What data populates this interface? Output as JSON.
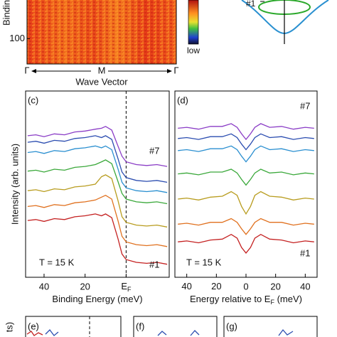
{
  "chart_data": [
    {
      "type": "heatmap",
      "ylabel": "Bindin",
      "ylim": [
        30,
        145
      ],
      "yticks": [
        100
      ],
      "categories": [
        "Γ",
        "M",
        "Γ"
      ],
      "xlabel": "Wave Vector",
      "colorbar_label": "low",
      "schematic_label": "#1"
    },
    {
      "type": "line",
      "panel_label": "(c)",
      "xlabel": "Binding Energy (meV)",
      "ylabel": "Intensity (arb. units)",
      "xlim": [
        49,
        -21
      ],
      "ylim": [
        0,
        10
      ],
      "xticks": [
        40,
        20,
        {
          "value": 0,
          "label": "E",
          "sub": "F"
        }
      ],
      "vline": 0,
      "annotations": [
        "#7",
        "#1",
        "T = 15 K"
      ],
      "x": [
        48,
        44,
        40,
        35,
        30,
        25,
        20,
        15,
        12,
        10,
        7,
        4,
        2,
        0,
        -5,
        -10,
        -15,
        -20
      ],
      "series": [
        {
          "color": "#8a3cc6",
          "values": [
            7.6,
            7.65,
            7.55,
            7.7,
            7.65,
            7.8,
            7.85,
            7.95,
            8.0,
            8.1,
            7.9,
            7.05,
            6.5,
            6.2,
            6.05,
            6.0,
            6.05,
            5.95
          ]
        },
        {
          "color": "#2b4db0",
          "values": [
            7.25,
            7.3,
            7.2,
            7.35,
            7.3,
            7.45,
            7.5,
            7.6,
            7.5,
            7.6,
            7.4,
            6.38,
            5.65,
            5.35,
            5.2,
            5.15,
            5.2,
            5.1
          ]
        },
        {
          "color": "#2a8fd0",
          "values": [
            6.7,
            6.75,
            6.65,
            6.8,
            6.75,
            6.9,
            6.95,
            7.05,
            6.95,
            7.05,
            6.85,
            5.83,
            5.1,
            4.8,
            4.65,
            4.6,
            4.65,
            4.55
          ]
        },
        {
          "color": "#3aa83a",
          "values": [
            5.7,
            5.75,
            5.65,
            5.8,
            5.75,
            5.9,
            5.95,
            6.05,
            6.2,
            6.3,
            6.1,
            5.15,
            4.5,
            4.2,
            4.05,
            4.0,
            4.05,
            3.95
          ]
        },
        {
          "color": "#b89c1e",
          "values": [
            4.65,
            4.7,
            4.6,
            4.75,
            4.7,
            4.85,
            4.9,
            5.0,
            5.4,
            5.5,
            5.3,
            4.13,
            3.25,
            2.95,
            2.8,
            2.75,
            2.8,
            2.7
          ]
        },
        {
          "color": "#e0701e",
          "values": [
            3.8,
            3.85,
            3.75,
            3.9,
            3.85,
            4.0,
            4.05,
            4.15,
            4.3,
            4.4,
            4.2,
            3.05,
            2.2,
            1.9,
            1.75,
            1.7,
            1.75,
            1.65
          ]
        },
        {
          "color": "#c42020",
          "values": [
            3.05,
            3.1,
            3.0,
            3.15,
            3.1,
            3.25,
            3.3,
            3.4,
            3.3,
            3.4,
            3.2,
            2.08,
            1.25,
            0.95,
            0.8,
            0.75,
            0.8,
            0.7
          ]
        }
      ]
    },
    {
      "type": "line",
      "panel_label": "(d)",
      "xlabel": "Energy relative to E",
      "xlabel_sub": "F",
      "xlabel_end": " (meV)",
      "xlim": [
        -48,
        48
      ],
      "ylim": [
        0,
        10
      ],
      "xticks": [
        {
          "value": -40,
          "label": "40"
        },
        {
          "value": -20,
          "label": "20"
        },
        0,
        20,
        40
      ],
      "annotations": [
        "#7",
        "#1",
        "T = 15 K"
      ],
      "x": [
        -46,
        -40,
        -32,
        -24,
        -16,
        -10,
        -6,
        -3,
        0,
        3,
        6,
        10,
        16,
        24,
        32,
        40,
        46
      ],
      "series": [
        {
          "color": "#8a3cc6",
          "values": [
            8.0,
            8.05,
            7.95,
            8.1,
            8.1,
            8.25,
            8.05,
            7.7,
            7.4,
            7.7,
            8.05,
            8.25,
            8.05,
            8.1,
            7.95,
            8.05,
            8.0
          ]
        },
        {
          "color": "#2b4db0",
          "values": [
            7.45,
            7.5,
            7.4,
            7.55,
            7.55,
            7.7,
            7.5,
            7.15,
            6.85,
            7.15,
            7.5,
            7.7,
            7.5,
            7.55,
            7.4,
            7.5,
            7.45
          ]
        },
        {
          "color": "#2a8fd0",
          "values": [
            6.8,
            6.85,
            6.75,
            6.9,
            6.9,
            7.05,
            6.85,
            6.5,
            6.2,
            6.5,
            6.85,
            7.05,
            6.85,
            6.9,
            6.75,
            6.85,
            6.8
          ]
        },
        {
          "color": "#3aa83a",
          "values": [
            5.55,
            5.6,
            5.5,
            5.65,
            5.65,
            5.8,
            5.6,
            5.25,
            4.95,
            5.25,
            5.6,
            5.8,
            5.6,
            5.65,
            5.5,
            5.6,
            5.55
          ]
        },
        {
          "color": "#b89c1e",
          "values": [
            4.2,
            4.25,
            4.15,
            4.3,
            4.35,
            4.6,
            4.4,
            3.8,
            3.4,
            3.8,
            4.4,
            4.6,
            4.35,
            4.3,
            4.15,
            4.25,
            4.2
          ]
        },
        {
          "color": "#e0701e",
          "values": [
            2.85,
            2.9,
            2.8,
            2.95,
            2.95,
            3.15,
            2.95,
            2.6,
            2.3,
            2.6,
            2.95,
            3.15,
            2.95,
            2.95,
            2.8,
            2.9,
            2.85
          ]
        },
        {
          "color": "#c42020",
          "values": [
            1.9,
            1.95,
            1.85,
            2.0,
            2.05,
            2.3,
            2.1,
            1.6,
            1.3,
            1.6,
            2.1,
            2.3,
            2.05,
            2.0,
            1.85,
            1.95,
            1.9
          ]
        }
      ]
    },
    {
      "type": "stub",
      "panel_label": "(e)",
      "ylabel": "ts)"
    },
    {
      "type": "stub",
      "panel_label": "(f)"
    },
    {
      "type": "stub",
      "panel_label": "(g)"
    }
  ]
}
